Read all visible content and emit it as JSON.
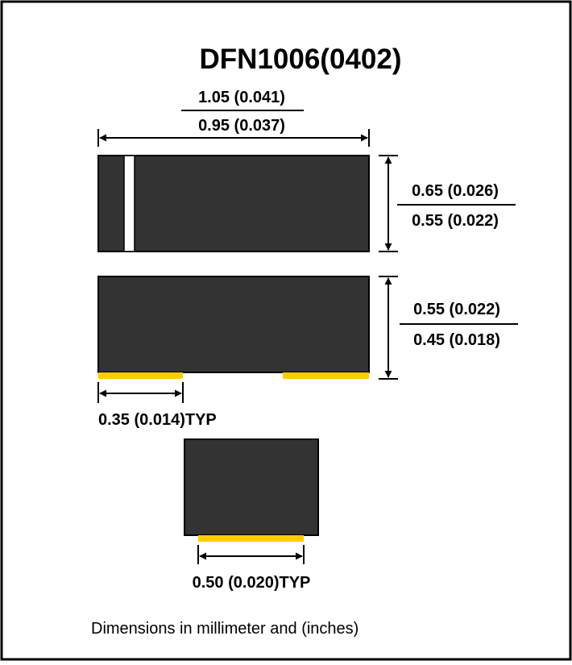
{
  "title": "DFN1006(0402)",
  "dimensions": {
    "length_max": "1.05 (0.041)",
    "length_min": "0.95 (0.037)",
    "width_max": "0.65 (0.026)",
    "width_min": "0.55 (0.022)",
    "height_max": "0.55 (0.022)",
    "height_min": "0.45 (0.018)",
    "pad_length": "0.35 (0.014)TYP",
    "pad_width": "0.50 (0.020)TYP"
  },
  "footnote": "Dimensions in millimeter and (inches)",
  "colors": {
    "body": "#333333",
    "pad": "#ffcc00",
    "outline": "#000000"
  }
}
